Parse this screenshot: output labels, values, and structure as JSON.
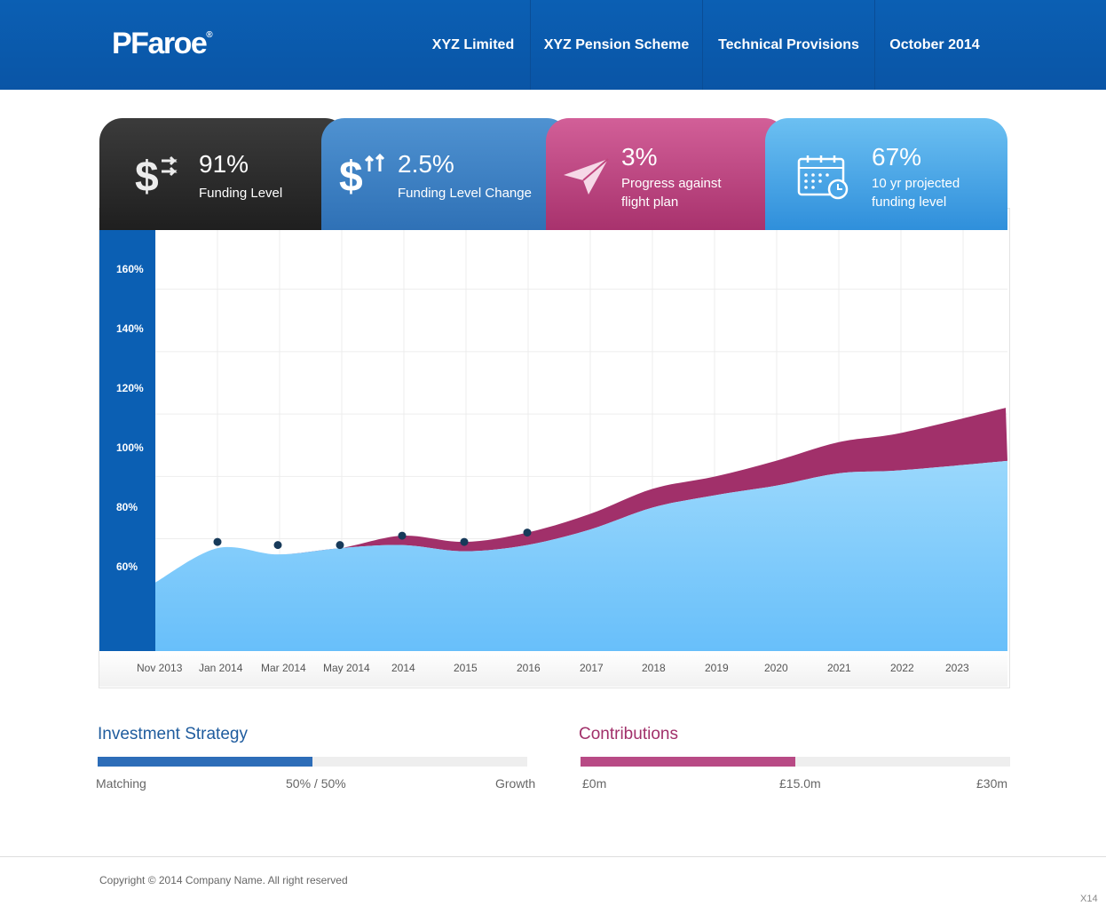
{
  "brand": {
    "name": "PFaroe",
    "mark": "®"
  },
  "nav": [
    "XYZ Limited",
    "XYZ Pension Scheme",
    "Technical Provisions",
    "October 2014"
  ],
  "cards": [
    {
      "value": "91%",
      "label": [
        "Funding Level"
      ],
      "icon": "dollar-transfer-icon",
      "color": "#2b2b2b"
    },
    {
      "value": "2.5%",
      "label": [
        "Funding Level Change"
      ],
      "icon": "dollar-up-icon",
      "color": "#3d82c4"
    },
    {
      "value": "3%",
      "label": [
        "Progress against",
        "flight plan"
      ],
      "icon": "paper-plane-icon",
      "color": "#c0457d"
    },
    {
      "value": "67%",
      "label": [
        "10 yr projected",
        "funding level"
      ],
      "icon": "calendar-clock-icon",
      "color": "#3fa2e6"
    }
  ],
  "chart_data": {
    "type": "area",
    "yticks": [
      "160%",
      "140%",
      "120%",
      "100%",
      "80%",
      "60%"
    ],
    "ylim": [
      40,
      175
    ],
    "categories": [
      "Nov 2013",
      "Jan 2014",
      "Mar 2014",
      "May 2014",
      "2014",
      "2015",
      "2016",
      "2017",
      "2018",
      "2019",
      "2020",
      "2021",
      "2022",
      "2023"
    ],
    "series": [
      {
        "values": [
          62,
          73,
          71,
          73,
          74,
          72,
          74,
          79,
          86,
          90,
          93,
          97,
          98,
          101
        ]
      },
      {
        "values": [
          62,
          73,
          71,
          73,
          77,
          75,
          78,
          84,
          92,
          96,
          101,
          107,
          110,
          118
        ]
      }
    ],
    "markers": [
      {
        "x": "Jan 2014",
        "y": 75
      },
      {
        "x": "Mar 2014",
        "y": 74
      },
      {
        "x": "May 2014",
        "y": 74
      },
      {
        "x": "2014",
        "y": 77
      },
      {
        "x": "2015",
        "y": 75
      },
      {
        "x": "2016",
        "y": 78
      }
    ],
    "grid": true,
    "colors": {
      "base": "#80caf9",
      "band": "#a1306a",
      "marker": "#173a5a"
    }
  },
  "investment": {
    "title": "Investment Strategy",
    "fraction": 0.5,
    "left": "Matching",
    "mid": "50% / 50%",
    "right": "Growth",
    "color": "#2d6db8"
  },
  "contributions": {
    "title": "Contributions",
    "fraction": 0.5,
    "left": "£0m",
    "mid": "£15.0m",
    "right": "£30m",
    "color": "#b84a85"
  },
  "footer": {
    "copyright": "Copyright © 2014 Company Name. All right reserved",
    "corner": "X14"
  }
}
